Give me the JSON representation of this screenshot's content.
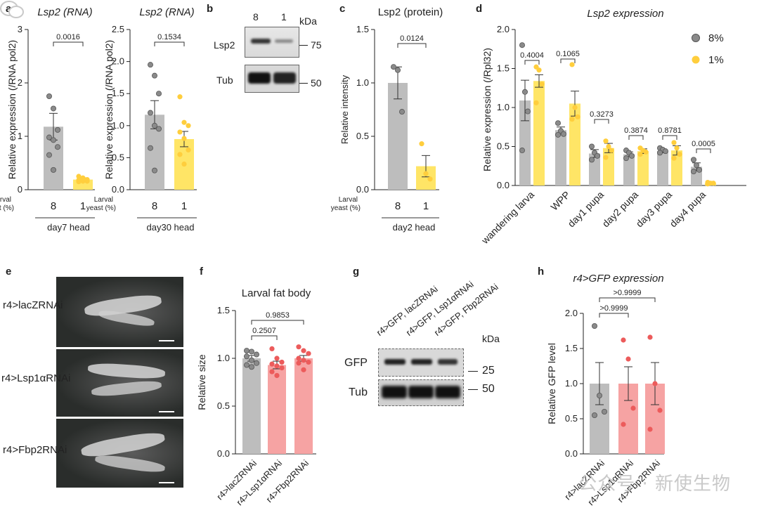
{
  "colors": {
    "gray_bar": "#bdbdbd",
    "gray_dot": "#8a8a8a",
    "yellow_bar": "#ffe566",
    "yellow_dot": "#ffce3d",
    "pink_bar": "#f6a3a3",
    "pink_dot": "#ec5b5b",
    "axis": "#222222"
  },
  "panels": {
    "a": "a",
    "b": "b",
    "c": "c",
    "d": "d",
    "e": "e",
    "f": "f",
    "g": "g",
    "h": "h"
  },
  "common": {
    "larval_yeast": "Larval yeast (%)",
    "larval": "Larval",
    "yeast": "yeast (%)"
  },
  "blot_b": {
    "lanes": [
      "8",
      "1"
    ],
    "kda": "kDa",
    "rows": [
      "Lsp2",
      "Tub"
    ],
    "markers": [
      "75",
      "50"
    ]
  },
  "blot_g": {
    "lanes": [
      "r4>GFP, lacZRNAi",
      "r4>GFP, Lsp1αRNAi",
      "r4>GFP, Fbp2RNAi"
    ],
    "kda": "kDa",
    "rows": [
      "GFP",
      "Tub"
    ],
    "markers": [
      "25",
      "50"
    ]
  },
  "images_e": {
    "labels": [
      "r4>lacZRNAi",
      "r4>Lsp1αRNAi",
      "r4>Fbp2RNAi"
    ]
  },
  "watermark": "公众号 · 新使生物",
  "chart_data": [
    {
      "id": "a1",
      "type": "bar",
      "title": "Lsp2 (RNA)",
      "ylabel": "Relative expression (/RNA pol2)",
      "xlabel": "day7 head",
      "categories": [
        "8",
        "1"
      ],
      "values": [
        1.18,
        0.19
      ],
      "errors": [
        0.25,
        0.03
      ],
      "points": [
        [
          1.75,
          1.52,
          1.12,
          0.98,
          0.93,
          0.8,
          0.65,
          0.37
        ],
        [
          0.25,
          0.22,
          0.19,
          0.18,
          0.17,
          0.16,
          0.15,
          0.16
        ]
      ],
      "ylim": [
        0,
        3
      ],
      "yticks": [
        0,
        1,
        2,
        3
      ],
      "pvalue": "0.0016"
    },
    {
      "id": "a2",
      "type": "bar",
      "title": "Lsp2 (RNA)",
      "ylabel": "Relative expression (/RNA pol2)",
      "xlabel": "day30 head",
      "categories": [
        "8",
        "1"
      ],
      "values": [
        1.17,
        0.79
      ],
      "errors": [
        0.22,
        0.12
      ],
      "points": [
        [
          1.95,
          1.78,
          1.5,
          1.2,
          1.0,
          0.95,
          0.65,
          0.3
        ],
        [
          1.45,
          1.05,
          1.0,
          0.9,
          0.8,
          0.62,
          0.55,
          0.4
        ]
      ],
      "ylim": [
        0,
        2.5
      ],
      "yticks": [
        0.0,
        0.5,
        1.0,
        1.5,
        2.0,
        2.5
      ],
      "pvalue": "0.1534"
    },
    {
      "id": "c",
      "type": "bar",
      "title": "Lsp2 (protein)",
      "ylabel": "Relative intensity",
      "xlabel": "day2 head",
      "categories": [
        "8",
        "1"
      ],
      "values": [
        1.0,
        0.22
      ],
      "errors": [
        0.15,
        0.1
      ],
      "points": [
        [
          1.15,
          1.12,
          0.73
        ],
        [
          0.43,
          0.15,
          0.1
        ]
      ],
      "ylim": [
        0,
        1.5
      ],
      "yticks": [
        0.0,
        0.5,
        1.0,
        1.5
      ],
      "pvalue": "0.0124"
    },
    {
      "id": "d",
      "type": "bar",
      "title": "Lsp2 expression",
      "ylabel": "Relative expression (/Rpl32)",
      "categories": [
        "wandering larva",
        "WPP",
        "day1 pupa",
        "day2 pupa",
        "day3 pupa",
        "day4 pupa"
      ],
      "series": [
        {
          "name": "8%",
          "values": [
            1.09,
            0.71,
            0.41,
            0.4,
            0.44,
            0.24
          ],
          "errors": [
            0.26,
            0.04,
            0.05,
            0.03,
            0.02,
            0.05
          ]
        },
        {
          "name": "1%",
          "values": [
            1.34,
            1.05,
            0.48,
            0.44,
            0.45,
            0.03
          ],
          "errors": [
            0.08,
            0.16,
            0.06,
            0.03,
            0.06,
            0.01
          ]
        }
      ],
      "points8": [
        [
          1.8,
          1.2,
          0.95,
          0.45
        ],
        [
          0.8,
          0.7,
          0.66,
          0.65
        ],
        [
          0.5,
          0.42,
          0.38,
          0.33
        ],
        [
          0.45,
          0.42,
          0.38,
          0.35
        ],
        [
          0.48,
          0.46,
          0.44,
          0.42
        ],
        [
          0.33,
          0.26,
          0.2,
          0.18
        ]
      ],
      "points1": [
        [
          1.52,
          1.48,
          1.3,
          1.06
        ],
        [
          1.55,
          1.0,
          0.88,
          0.85
        ],
        [
          0.57,
          0.5,
          0.45,
          0.36
        ],
        [
          0.48,
          0.45,
          0.43,
          0.4
        ],
        [
          0.55,
          0.48,
          0.4,
          0.35
        ],
        [
          0.04,
          0.03,
          0.03,
          0.02
        ]
      ],
      "ylim": [
        0,
        2.0
      ],
      "yticks": [
        0.0,
        0.5,
        1.0,
        1.5,
        2.0
      ],
      "pvalues": [
        "0.4004",
        "0.1065",
        "0.3273",
        "0.3874",
        "0.8781",
        "0.0005"
      ],
      "legend": "top-right"
    },
    {
      "id": "f",
      "type": "bar",
      "title": "Larval fat body",
      "ylabel": "Relative size",
      "categories": [
        "r4>lacZRNAi",
        "r4>Lsp1αRNAi",
        "r4>Fbp2RNAi"
      ],
      "values": [
        1.0,
        0.93,
        1.0
      ],
      "errors": [
        0.03,
        0.04,
        0.03
      ],
      "points": [
        [
          1.08,
          1.07,
          1.04,
          1.02,
          0.98,
          0.95,
          0.93,
          0.91
        ],
        [
          1.1,
          1.0,
          0.96,
          0.94,
          0.92,
          0.9,
          0.86,
          0.82
        ],
        [
          1.12,
          1.08,
          1.05,
          1.0,
          0.98,
          0.96,
          0.95,
          0.88
        ]
      ],
      "ylim": [
        0,
        1.5
      ],
      "yticks": [
        0.0,
        0.5,
        1.0,
        1.5
      ],
      "pvalues": [
        "0.2507",
        "0.9853"
      ]
    },
    {
      "id": "h",
      "type": "bar",
      "title": "r4>GFP expression",
      "ylabel": "Relative GFP level",
      "categories": [
        "r4>lacZRNAi",
        "r4>Lsp1αRNAi",
        "r4>Fbp2RNAi"
      ],
      "values": [
        1.0,
        1.0,
        1.0
      ],
      "errors": [
        0.3,
        0.24,
        0.3
      ],
      "points": [
        [
          1.82,
          0.83,
          0.6,
          0.55
        ],
        [
          1.62,
          1.35,
          0.65,
          0.42
        ],
        [
          1.66,
          1.0,
          0.62,
          0.35
        ]
      ],
      "ylim": [
        0,
        2.0
      ],
      "yticks": [
        0.0,
        0.5,
        1.0,
        1.5,
        2.0
      ],
      "pvalues": [
        ">0.9999",
        ">0.9999"
      ]
    }
  ]
}
